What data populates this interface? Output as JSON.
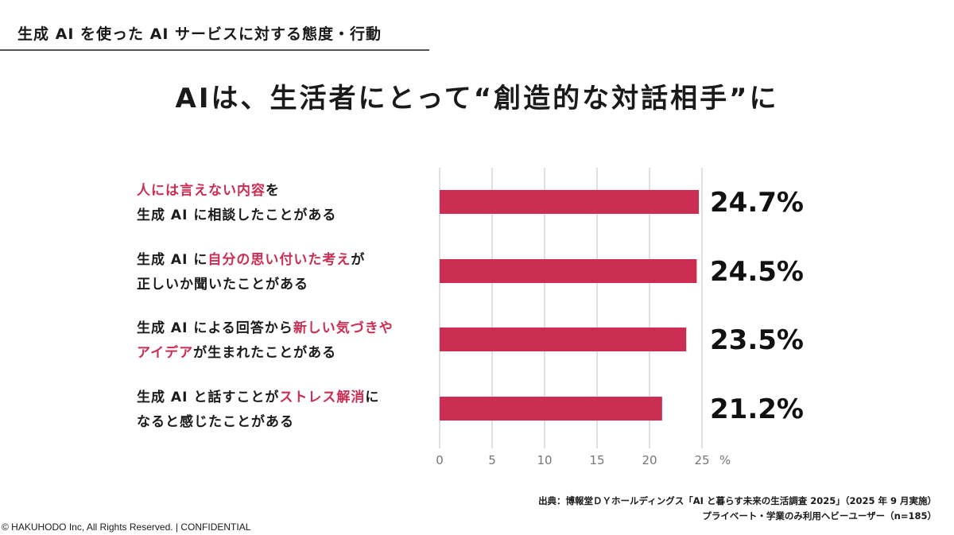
{
  "section_title": "生成 AI を使った AI サービスに対する態度・行動",
  "headline": "AIは、生活者にとって“創造的な対話相手”に",
  "items": [
    {
      "lines": [
        [
          {
            "t": "人には言えない内容",
            "hl": true
          },
          {
            "t": "を",
            "hl": false
          }
        ],
        [
          {
            "t": "生成 AI に相談したことがある",
            "hl": false
          }
        ]
      ]
    },
    {
      "lines": [
        [
          {
            "t": "生成 AI に",
            "hl": false
          },
          {
            "t": "自分の思い付いた考え",
            "hl": true
          },
          {
            "t": "が",
            "hl": false
          }
        ],
        [
          {
            "t": "正しいか聞いたことがある",
            "hl": false
          }
        ]
      ]
    },
    {
      "lines": [
        [
          {
            "t": "生成 AI による回答から",
            "hl": false
          },
          {
            "t": "新しい気づきや",
            "hl": true
          }
        ],
        [
          {
            "t": "アイデア",
            "hl": true
          },
          {
            "t": "が生まれたことがある",
            "hl": false
          }
        ]
      ]
    },
    {
      "lines": [
        [
          {
            "t": "生成 AI と話すことが",
            "hl": false
          },
          {
            "t": "ストレス解消",
            "hl": true
          },
          {
            "t": "に",
            "hl": false
          }
        ],
        [
          {
            "t": "なると感じたことがある",
            "hl": false
          }
        ]
      ]
    }
  ],
  "chart_data": {
    "type": "bar",
    "orientation": "horizontal",
    "categories": [
      "人には言えない内容を生成 AI に相談したことがある",
      "生成 AI に自分の思い付いた考えが正しいか聞いたことがある",
      "生成 AI による回答から新しい気づきやアイデアが生まれたことがある",
      "生成 AI と話すことがストレス解消になると感じたことがある"
    ],
    "values": [
      24.7,
      24.5,
      23.5,
      21.2
    ],
    "data_labels": [
      "24.7%",
      "24.5%",
      "23.5%",
      "21.2%"
    ],
    "xticks": [
      "0",
      "5",
      "10",
      "15",
      "20",
      "25"
    ],
    "xunit": "%",
    "xlim": [
      0,
      25
    ],
    "grid": true,
    "bar_color": "#cc2d52"
  },
  "source": {
    "line1": "出典：博報堂ＤＹホールディングス「AI と暮らす未来の生活調査 2025」（2025 年 9 月実施）",
    "line2": "プライベート・学業のみ利用ヘビーユーザー（n=185）"
  },
  "copyright": "© HAKUHODO Inc, All  Rights  Reserved. | CONFIDENTIAL"
}
